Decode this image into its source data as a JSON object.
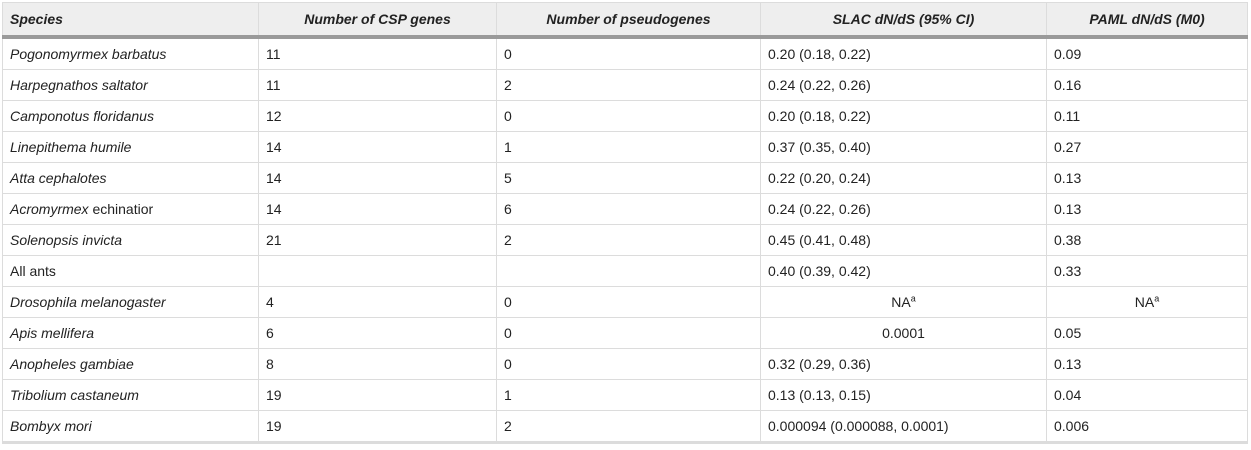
{
  "headers": [
    "Species",
    "Number of CSP genes",
    "Number of pseudogenes",
    "SLAC dN/dS (95% CI)",
    "PAML dN/dS (M0)"
  ],
  "rows": [
    {
      "species": "Pogonomyrmex barbatus",
      "csp": "11",
      "pseudo": "0",
      "slac": "0.20 (0.18, 0.22)",
      "paml": "0.09"
    },
    {
      "species": "Harpegnathos saltator",
      "csp": "11",
      "pseudo": "2",
      "slac": "0.24 (0.22, 0.26)",
      "paml": "0.16"
    },
    {
      "species": "Camponotus floridanus",
      "csp": "12",
      "pseudo": "0",
      "slac": "0.20 (0.18, 0.22)",
      "paml": "0.11"
    },
    {
      "species": "Linepithema humile",
      "csp": "14",
      "pseudo": "1",
      "slac": "0.37 (0.35, 0.40)",
      "paml": "0.27"
    },
    {
      "species": "Atta cephalotes",
      "csp": "14",
      "pseudo": "5",
      "slac": "0.22 (0.20, 0.24)",
      "paml": "0.13"
    },
    {
      "species_genus": "Acromyrmex",
      "species_epithet": "echinatior",
      "csp": "14",
      "pseudo": "6",
      "slac": "0.24 (0.22, 0.26)",
      "paml": "0.13"
    },
    {
      "species": "Solenopsis invicta",
      "csp": "21",
      "pseudo": "2",
      "slac": "0.45 (0.41, 0.48)",
      "paml": "0.38"
    },
    {
      "species": "All ants",
      "csp": "",
      "pseudo": "",
      "slac": "0.40 (0.39, 0.42)",
      "paml": "0.33"
    },
    {
      "species": "Drosophila melanogaster",
      "csp": "4",
      "pseudo": "0",
      "slac_na": "NA",
      "slac_sup": "a",
      "paml_na": "NA",
      "paml_sup": "a"
    },
    {
      "species": "Apis mellifera",
      "csp": "6",
      "pseudo": "0",
      "slac": "0.0001",
      "paml": "0.05"
    },
    {
      "species": "Anopheles gambiae",
      "csp": "8",
      "pseudo": "0",
      "slac": "0.32 (0.29, 0.36)",
      "paml": "0.13"
    },
    {
      "species": "Tribolium castaneum",
      "csp": "19",
      "pseudo": "1",
      "slac": "0.13 (0.13, 0.15)",
      "paml": "0.04"
    },
    {
      "species": "Bombyx mori",
      "csp": "19",
      "pseudo": "2",
      "slac": "0.000094 (0.000088, 0.0001)",
      "paml": "0.006"
    }
  ]
}
